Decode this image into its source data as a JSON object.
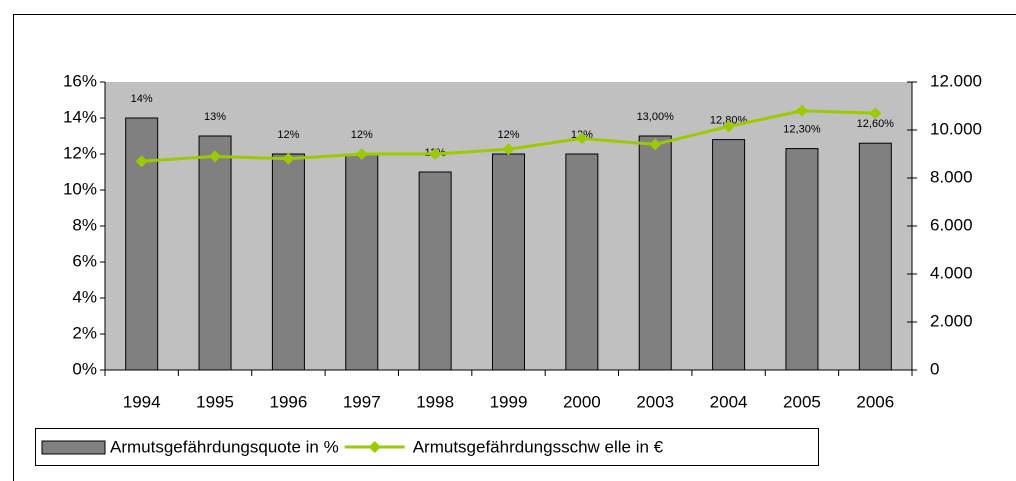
{
  "chart_data": {
    "type": "bar",
    "categories": [
      "1994",
      "1995",
      "1996",
      "1997",
      "1998",
      "1999",
      "2000",
      "2003",
      "2004",
      "2005",
      "2006"
    ],
    "series": [
      {
        "name": "Armutsgefährdungsquote in %",
        "type": "bar",
        "color": "#808080",
        "values": [
          14,
          13,
          12,
          12,
          11,
          12,
          12,
          13,
          12.8,
          12.3,
          12.6
        ],
        "value_labels": [
          "14%",
          "13%",
          "12%",
          "12%",
          "11%",
          "12%",
          "12%",
          "13,00%",
          "12,80%",
          "12,30%",
          "12,60%"
        ]
      },
      {
        "name": "Armutsgefährdungsschw elle in €",
        "type": "line",
        "axis": "y2",
        "color": "#99cc00",
        "values": [
          8700,
          8900,
          8800,
          9000,
          9000,
          9200,
          9650,
          9400,
          10150,
          10800,
          10700
        ]
      }
    ],
    "ylim": [
      0,
      16
    ],
    "yticks": [
      {
        "value": 0,
        "label": "0%"
      },
      {
        "value": 2,
        "label": "2%"
      },
      {
        "value": 4,
        "label": "4%"
      },
      {
        "value": 6,
        "label": "6%"
      },
      {
        "value": 8,
        "label": "8%"
      },
      {
        "value": 10,
        "label": "10%"
      },
      {
        "value": 12,
        "label": "12%"
      },
      {
        "value": 14,
        "label": "14%"
      },
      {
        "value": 16,
        "label": "16%"
      }
    ],
    "y2lim": [
      0,
      12000
    ],
    "y2ticks": [
      0,
      {
        "value": 2000,
        "label": "2.000"
      },
      {
        "value": 4000,
        "label": "4.000"
      },
      {
        "value": 6000,
        "label": "6.000"
      },
      {
        "value": 8000,
        "label": "8.000"
      },
      {
        "value": 10000,
        "label": "10.000"
      },
      {
        "value": 12000,
        "label": "12.000"
      }
    ],
    "plot_background": "#c0c0c0"
  }
}
